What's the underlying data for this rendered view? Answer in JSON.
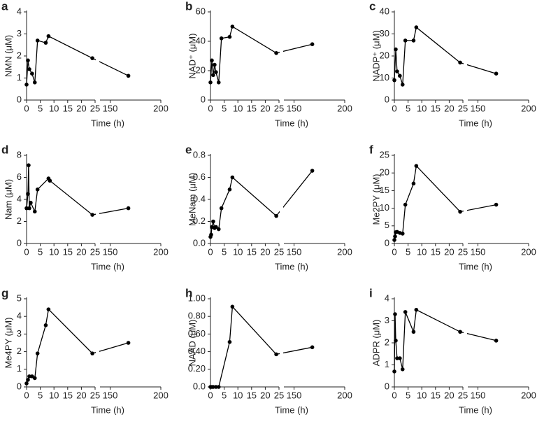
{
  "chart_data": [
    {
      "type": "line",
      "label": "a",
      "ylabel": "NMN (μM)",
      "xlabel": "Time (h)",
      "color": "#000000",
      "x": [
        0,
        0.5,
        1,
        2,
        3,
        4,
        7,
        8,
        24,
        168
      ],
      "values": [
        0.7,
        1.8,
        1.4,
        1.2,
        0.8,
        2.7,
        2.6,
        2.9,
        1.9,
        1.1
      ],
      "ylim": [
        0,
        4
      ],
      "yticks": [
        0,
        1,
        2,
        3,
        4
      ],
      "xlim": [
        0,
        25
      ],
      "xticks": [
        0,
        5,
        10,
        15,
        20,
        25
      ],
      "x2lim": [
        140,
        200
      ],
      "x2ticks": [
        150,
        200
      ]
    },
    {
      "type": "line",
      "label": "b",
      "ylabel": "NAD⁺ (μM)",
      "xlabel": "Time (h)",
      "color": "#000000",
      "x": [
        0,
        0.5,
        1,
        1.5,
        2,
        3,
        4,
        7,
        8,
        24,
        168
      ],
      "values": [
        12,
        27,
        17,
        24,
        19,
        12,
        42,
        43,
        50,
        32,
        38
      ],
      "ylim": [
        0,
        60
      ],
      "yticks": [
        0,
        20,
        40,
        60
      ],
      "xlim": [
        0,
        25
      ],
      "xticks": [
        0,
        5,
        10,
        15,
        20,
        25
      ],
      "x2lim": [
        140,
        200
      ],
      "x2ticks": [
        150,
        200
      ]
    },
    {
      "type": "line",
      "label": "c",
      "ylabel": "NADP⁺ (μM)",
      "xlabel": "Time (h)",
      "color": "#000000",
      "x": [
        0,
        0.5,
        1,
        2,
        3,
        4,
        7,
        8,
        24,
        168
      ],
      "values": [
        9,
        23,
        13,
        11,
        7,
        27,
        27,
        33,
        17,
        12
      ],
      "ylim": [
        0,
        40
      ],
      "yticks": [
        0,
        10,
        20,
        30,
        40
      ],
      "xlim": [
        0,
        25
      ],
      "xticks": [
        0,
        5,
        10,
        15,
        20,
        25
      ],
      "x2lim": [
        140,
        200
      ],
      "x2ticks": [
        150,
        200
      ]
    },
    {
      "type": "line",
      "label": "d",
      "ylabel": "Nam (μM)",
      "xlabel": "Time (h)",
      "color": "#000000",
      "x": [
        0,
        0.5,
        0.75,
        1,
        1.5,
        3,
        4,
        8,
        8.5,
        24,
        168
      ],
      "values": [
        3.2,
        4.5,
        7.1,
        3.2,
        3.7,
        2.9,
        4.9,
        5.9,
        5.7,
        2.6,
        3.2
      ],
      "ylim": [
        0,
        8
      ],
      "yticks": [
        0,
        2,
        4,
        6,
        8
      ],
      "xlim": [
        0,
        25
      ],
      "xticks": [
        0,
        5,
        10,
        15,
        20,
        25
      ],
      "x2lim": [
        140,
        200
      ],
      "x2ticks": [
        150,
        200
      ]
    },
    {
      "type": "line",
      "label": "e",
      "ylabel": "MeNam (μM)",
      "xlabel": "Time (h)",
      "color": "#000000",
      "x": [
        0,
        0.25,
        0.5,
        1,
        1.5,
        2,
        3,
        4,
        7,
        8,
        24,
        168
      ],
      "values": [
        0.06,
        0.08,
        0.15,
        0.2,
        0.14,
        0.15,
        0.13,
        0.32,
        0.49,
        0.6,
        0.25,
        0.66
      ],
      "ylim": [
        0,
        0.8
      ],
      "yticks": [
        {
          "value": 0,
          "label": "0.0"
        },
        0.2,
        0.4,
        0.6,
        0.8
      ],
      "xlim": [
        0,
        25
      ],
      "xticks": [
        0,
        5,
        10,
        15,
        20,
        25
      ],
      "x2lim": [
        140,
        200
      ],
      "x2ticks": [
        150,
        200
      ]
    },
    {
      "type": "line",
      "label": "f",
      "ylabel": "Me2PY (μM)",
      "xlabel": "Time (h)",
      "color": "#000000",
      "x": [
        0,
        0.25,
        0.5,
        1,
        2,
        3,
        4,
        7,
        8,
        24,
        168
      ],
      "values": [
        1,
        2,
        3.2,
        3.3,
        3,
        2.8,
        11,
        17,
        22,
        9,
        11
      ],
      "ylim": [
        0,
        25
      ],
      "yticks": [
        0,
        5,
        10,
        15,
        20,
        25
      ],
      "xlim": [
        0,
        25
      ],
      "xticks": [
        0,
        5,
        10,
        15,
        20,
        25
      ],
      "x2lim": [
        140,
        200
      ],
      "x2ticks": [
        150,
        200
      ]
    },
    {
      "type": "line",
      "label": "g",
      "ylabel": "Me4PY (μM)",
      "xlabel": "Time (h)",
      "color": "#000000",
      "x": [
        0,
        0.5,
        1,
        2,
        3,
        4,
        7,
        8,
        24,
        168
      ],
      "values": [
        0.2,
        0.4,
        0.6,
        0.6,
        0.5,
        1.9,
        3.5,
        4.4,
        1.9,
        2.5
      ],
      "ylim": [
        0,
        5
      ],
      "yticks": [
        0,
        1,
        2,
        3,
        4,
        5
      ],
      "xlim": [
        0,
        25
      ],
      "xticks": [
        0,
        5,
        10,
        15,
        20,
        25
      ],
      "x2lim": [
        140,
        200
      ],
      "x2ticks": [
        150,
        200
      ]
    },
    {
      "type": "line",
      "label": "h",
      "ylabel": "NAAD (μM)",
      "xlabel": "Time (h)",
      "color": "#000000",
      "x": [
        0,
        0.5,
        1,
        2,
        3,
        7,
        8,
        24,
        168
      ],
      "values": [
        0,
        0,
        0,
        0,
        0,
        0.51,
        0.91,
        0.37,
        0.45
      ],
      "ylim": [
        0,
        1
      ],
      "yticks": [
        {
          "value": 0,
          "label": "0.0"
        },
        {
          "value": 0.2,
          "label": "0.20"
        },
        {
          "value": 0.4,
          "label": "0.40"
        },
        {
          "value": 0.6,
          "label": "0.60"
        },
        {
          "value": 0.8,
          "label": "0.80"
        },
        {
          "value": 1,
          "label": "1.00"
        }
      ],
      "xlim": [
        0,
        25
      ],
      "xticks": [
        0,
        5,
        10,
        15,
        20,
        25
      ],
      "x2lim": [
        140,
        200
      ],
      "x2ticks": [
        150,
        200
      ]
    },
    {
      "type": "line",
      "label": "i",
      "ylabel": "ADPR (μM)",
      "xlabel": "Time (h)",
      "color": "#000000",
      "x": [
        0,
        0.25,
        0.5,
        1,
        2,
        3,
        4,
        7,
        8,
        24,
        168
      ],
      "values": [
        0.7,
        3.3,
        2.1,
        1.3,
        1.3,
        0.8,
        3.4,
        2.5,
        3.5,
        2.5,
        2.1
      ],
      "ylim": [
        0,
        4
      ],
      "yticks": [
        0,
        1,
        2,
        3,
        4
      ],
      "xlim": [
        0,
        25
      ],
      "xticks": [
        0,
        5,
        10,
        15,
        20,
        25
      ],
      "x2lim": [
        140,
        200
      ],
      "x2ticks": [
        150,
        200
      ]
    }
  ]
}
